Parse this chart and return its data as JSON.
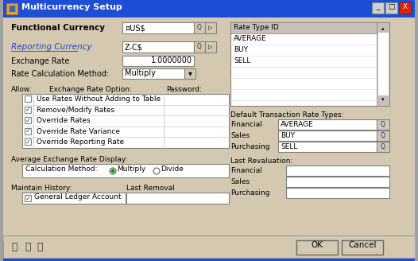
{
  "title": "Multicurrency Setup",
  "title_bar_color": "#1c4fd6",
  "title_bar_text_color": "#ffffff",
  "dialog_bg": "#d4c9b0",
  "field_bg": "#ffffff",
  "listbox_header_bg": "#c8c0b0",
  "listbox_bg": "#ffffff",
  "button_bg": "#d4c9b0",
  "close_btn_color": "#cc2200",
  "functional_currency_label": "Functional Currency",
  "functional_currency_value": "¤US$",
  "reporting_currency_label": "Reporting Currency",
  "reporting_currency_value": "Z-C$",
  "exchange_rate_label": "Exchange Rate",
  "exchange_rate_value": "1.0000000",
  "rate_calc_label": "Rate Calculation Method:",
  "rate_calc_value": "Multiply",
  "allow_label": "Allow:",
  "exchange_rate_option_label": "Exchange Rate Option:",
  "password_label": "Password:",
  "checkboxes": [
    {
      "label": "Use Rates Without Adding to Table",
      "checked": false
    },
    {
      "label": "Remove/Modify Rates",
      "checked": true
    },
    {
      "label": "Override Rates",
      "checked": true
    },
    {
      "label": "Override Rate Variance",
      "checked": true
    },
    {
      "label": "Override Reporting Rate",
      "checked": true
    }
  ],
  "rate_type_id_label": "Rate Type ID",
  "rate_type_items": [
    "AVERAGE",
    "BUY",
    "SELL",
    "",
    "",
    "",
    ""
  ],
  "avg_exchange_label": "Average Exchange Rate Display:",
  "calc_method_label": "Calculation Method:",
  "multiply_label": "Multiply",
  "divide_label": "Divide",
  "default_trans_label": "Default Transaction Rate Types:",
  "financial_label": "Financial",
  "financial_value": "AVERAGE",
  "sales_label": "Sales",
  "sales_value": "BUY",
  "purchasing_label": "Purchasing",
  "purchasing_value": "SELL",
  "last_reval_label": "Last Revaluation:",
  "last_reval_financial": "Financial",
  "last_reval_sales": "Sales",
  "last_reval_purchasing": "Purchasing",
  "maintain_history_label": "Maintain History:",
  "last_removal_label": "Last Removal",
  "gl_account_label": "General Ledger Account",
  "ok_label": "OK",
  "cancel_label": "Cancel",
  "link_color": "#2244cc"
}
